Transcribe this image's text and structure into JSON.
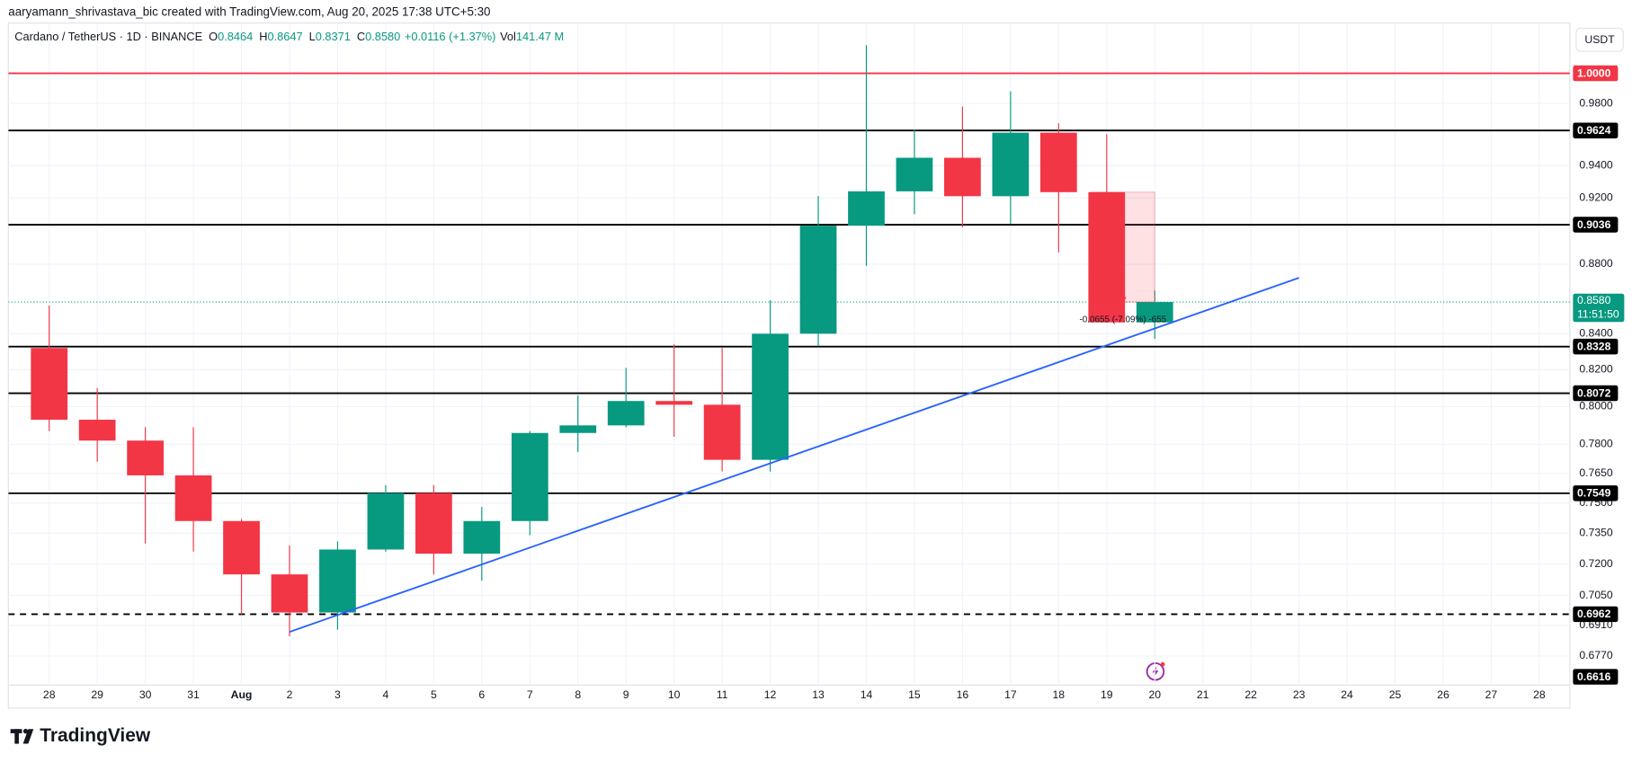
{
  "chart_data": {
    "type": "candlestick",
    "attribution": "aaryamann_shrivastava_bic created with TradingView.com, Aug 20, 2025 17:38 UTC+5:30",
    "legend": {
      "symbol": "Cardano / TetherUS · 1D · BINANCE",
      "items": [
        {
          "key": "O",
          "text": "0.8464"
        },
        {
          "key": "H",
          "text": "0.8647"
        },
        {
          "key": "L",
          "text": "0.8371"
        },
        {
          "key": "C",
          "text": "0.8580"
        }
      ],
      "change": "+0.0116 (+1.37%)",
      "volume": {
        "key": "Vol",
        "text": "141.47 M"
      }
    },
    "currency": "USDT",
    "categories": [
      "28",
      "29",
      "30",
      "31",
      "Aug",
      "2",
      "3",
      "4",
      "5",
      "6",
      "7",
      "8",
      "9",
      "10",
      "11",
      "12",
      "13",
      "14",
      "15",
      "16",
      "17",
      "18",
      "19",
      "20",
      "21",
      "22",
      "23",
      "24",
      "25",
      "26",
      "27",
      "28"
    ],
    "open": [
      0.832,
      0.793,
      0.782,
      0.764,
      0.741,
      0.715,
      0.697,
      0.727,
      0.755,
      0.725,
      0.741,
      0.786,
      0.79,
      0.803,
      0.801,
      0.772,
      0.84,
      0.903,
      0.924,
      0.945,
      0.921,
      0.961,
      0.9235,
      0.8464,
      null,
      null,
      null,
      null,
      null,
      null,
      null,
      null
    ],
    "high": [
      0.856,
      0.81,
      0.789,
      0.789,
      0.742,
      0.729,
      0.731,
      0.759,
      0.759,
      0.748,
      0.787,
      0.806,
      0.821,
      0.834,
      0.832,
      0.859,
      0.921,
      1.019,
      0.963,
      0.978,
      0.988,
      0.967,
      0.96,
      0.8647,
      null,
      null,
      null,
      null,
      null,
      null,
      null,
      null
    ],
    "low": [
      0.787,
      0.771,
      0.73,
      0.726,
      0.696,
      0.686,
      0.689,
      0.726,
      0.715,
      0.712,
      0.734,
      0.776,
      0.789,
      0.784,
      0.766,
      0.766,
      0.833,
      0.879,
      0.91,
      0.902,
      0.904,
      0.887,
      0.8464,
      0.8371,
      null,
      null,
      null,
      null,
      null,
      null,
      null,
      null
    ],
    "close": [
      0.793,
      0.782,
      0.764,
      0.741,
      0.715,
      0.697,
      0.727,
      0.755,
      0.725,
      0.741,
      0.786,
      0.79,
      0.803,
      0.801,
      0.772,
      0.84,
      0.903,
      0.924,
      0.945,
      0.921,
      0.961,
      0.9235,
      0.8464,
      0.858,
      null,
      null,
      null,
      null,
      null,
      null,
      null,
      null
    ],
    "up_color": "#089981",
    "down_color": "#f23645",
    "log_scale": true,
    "grid": true,
    "ylim": [
      0.6639,
      1.0342
    ],
    "yticks": [
      {
        "value": 0.98,
        "label": "0.9800"
      },
      {
        "value": 0.94,
        "label": "0.9400"
      },
      {
        "value": 0.92,
        "label": "0.9200"
      },
      {
        "value": 0.88,
        "label": "0.8800"
      },
      {
        "value": 0.84,
        "label": "0.8400"
      },
      {
        "value": 0.82,
        "label": "0.8200"
      },
      {
        "value": 0.8,
        "label": "0.8000"
      },
      {
        "value": 0.78,
        "label": "0.7800"
      },
      {
        "value": 0.765,
        "label": "0.7650"
      },
      {
        "value": 0.75,
        "label": "0.7500"
      },
      {
        "value": 0.735,
        "label": "0.7350"
      },
      {
        "value": 0.72,
        "label": "0.7200"
      },
      {
        "value": 0.705,
        "label": "0.7050"
      },
      {
        "value": 0.691,
        "label": "0.6910"
      },
      {
        "value": 0.677,
        "label": "0.6770"
      }
    ],
    "levels": [
      {
        "value": 1,
        "label": "1.0000",
        "color": "#f23645",
        "style": "solid"
      },
      {
        "value": 0.9624,
        "label": "0.9624",
        "color": "#000000",
        "style": "solid"
      },
      {
        "value": 0.9036,
        "label": "0.9036",
        "color": "#000000",
        "style": "solid"
      },
      {
        "value": 0.8328,
        "label": "0.8328",
        "color": "#000000",
        "style": "solid"
      },
      {
        "value": 0.8072,
        "label": "0.8072",
        "color": "#000000",
        "style": "solid"
      },
      {
        "value": 0.7549,
        "label": "0.7549",
        "color": "#000000",
        "style": "solid"
      },
      {
        "value": 0.6962,
        "label": "0.6962",
        "color": "#000000",
        "style": "dashed"
      },
      {
        "value": 0.6616,
        "label": "0.6616",
        "color": "#000000",
        "style": "solid"
      }
    ],
    "current_price": {
      "value": 0.858,
      "label": "0.8580",
      "countdown": "11:51:50",
      "color": "#089981"
    },
    "trendline": {
      "color": "#2962ff",
      "points": [
        {
          "x": "2",
          "y": 0.688
        },
        {
          "x": "23",
          "y": 0.872
        }
      ]
    },
    "measure": {
      "text": "-0.0655 (-7.09%) -655",
      "from": 0.9235,
      "to": 0.858,
      "x_from": "19",
      "x_to": "20",
      "color": "#f23645"
    }
  },
  "footer": {
    "brand": "TradingView"
  }
}
